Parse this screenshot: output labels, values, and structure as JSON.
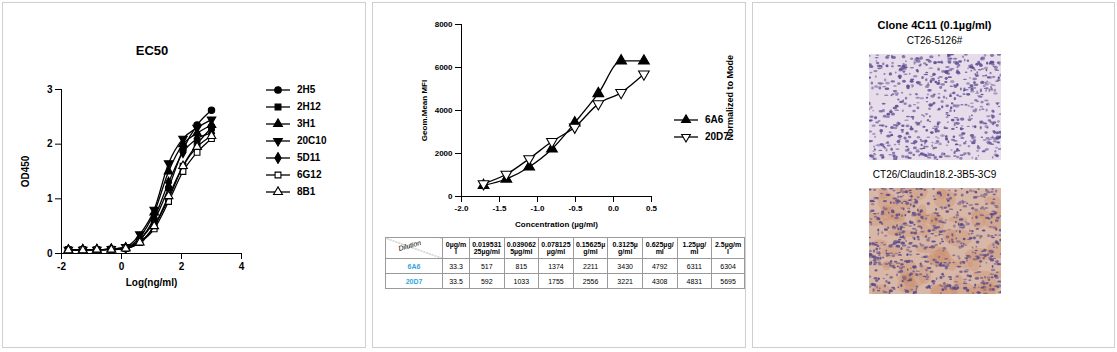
{
  "chart_data": [
    {
      "type": "line",
      "title": "EC50",
      "x_label": "Log(ng/ml)",
      "y_label": "OD450",
      "x": [
        -1.77,
        -1.29,
        -0.82,
        -0.34,
        0.14,
        0.61,
        1.09,
        1.57,
        2.05,
        2.52,
        3.0
      ],
      "xlim": [
        -2,
        4
      ],
      "xticks": [
        -2,
        0,
        2,
        4
      ],
      "ylim": [
        0,
        3
      ],
      "yticks": [
        0,
        1,
        2,
        3
      ],
      "legend": "right",
      "series": [
        {
          "name": "2H5",
          "color": "#000000",
          "marker": "circle",
          "values": [
            0.07,
            0.07,
            0.07,
            0.08,
            0.1,
            0.25,
            0.6,
            1.2,
            1.9,
            2.35,
            2.62
          ]
        },
        {
          "name": "2H12",
          "color": "#000000",
          "marker": "square",
          "values": [
            0.07,
            0.07,
            0.07,
            0.08,
            0.1,
            0.2,
            0.5,
            1.0,
            1.6,
            2.0,
            2.3
          ]
        },
        {
          "name": "3H1",
          "color": "#000000",
          "marker": "triangle",
          "values": [
            0.07,
            0.07,
            0.07,
            0.08,
            0.11,
            0.3,
            0.75,
            1.5,
            2.0,
            2.2,
            2.35
          ]
        },
        {
          "name": "20C10",
          "color": "#000000",
          "marker": "triangle-down",
          "values": [
            0.07,
            0.07,
            0.07,
            0.08,
            0.12,
            0.35,
            0.8,
            1.65,
            2.1,
            2.3,
            2.45
          ]
        },
        {
          "name": "5D11",
          "color": "#000000",
          "marker": "diamond",
          "values": [
            0.06,
            0.07,
            0.07,
            0.08,
            0.1,
            0.25,
            0.65,
            1.3,
            1.85,
            2.1,
            2.2
          ]
        },
        {
          "name": "6G12",
          "color": "#000000",
          "marker": "square-open",
          "values": [
            0.06,
            0.07,
            0.07,
            0.07,
            0.09,
            0.2,
            0.45,
            0.95,
            1.5,
            1.85,
            2.1
          ]
        },
        {
          "name": "8B1",
          "color": "#000000",
          "marker": "triangle-open",
          "values": [
            0.06,
            0.06,
            0.07,
            0.07,
            0.09,
            0.2,
            0.5,
            1.05,
            1.6,
            1.95,
            2.15
          ]
        }
      ]
    },
    {
      "type": "line",
      "x_label": "Concentration (µg/ml)",
      "y_label": "Geom.Mean MFI",
      "annotations": [
        "Normalized to Mode"
      ],
      "x": [
        -1.71,
        -1.41,
        -1.11,
        -0.81,
        -0.51,
        -0.2,
        0.1,
        0.4
      ],
      "xlim": [
        -2,
        0.5
      ],
      "xticks": [
        {
          "value": -2,
          "label": "-2.0"
        },
        -1.5,
        {
          "value": -1,
          "label": "-1.0"
        },
        -0.5,
        {
          "value": 0,
          "label": "0.0"
        },
        0.5
      ],
      "ylim": [
        0,
        8000
      ],
      "yticks": [
        0,
        2000,
        4000,
        6000,
        8000
      ],
      "legend": "right",
      "series": [
        {
          "name": "6A6",
          "color": "#000000",
          "marker": "triangle",
          "values": [
            517,
            815,
            1374,
            2211,
            3430,
            4792,
            6311,
            6304
          ]
        },
        {
          "name": "20D7",
          "color": "#000000",
          "marker": "triangle-down-open",
          "values": [
            592,
            1033,
            1755,
            2556,
            3221,
            4308,
            4831,
            5695
          ]
        }
      ]
    }
  ],
  "table": {
    "corner": "Dilution",
    "columns": [
      "0µg/ml",
      "0.01953125µg/ml",
      "0.0390625µg/ml",
      "0.078125µg/ml",
      "0.15625µg/ml",
      "0.3125µg/ml",
      "0.625µg/ml",
      "1.25µg/ml",
      "2.5µg/ml"
    ],
    "rows": [
      {
        "name": "6A6",
        "color": "#33a8d8",
        "values": [
          33.3,
          517,
          815,
          1374,
          2211,
          3430,
          4792,
          6311,
          6304
        ]
      },
      {
        "name": "20D7",
        "color": "#33a8d8",
        "values": [
          33.5,
          592,
          1033,
          1755,
          2556,
          3221,
          4308,
          4831,
          5695
        ]
      }
    ]
  },
  "image_panel": {
    "title": "Clone 4C11 (0.1µg/ml)",
    "images": [
      {
        "label": "CT26-5126#"
      },
      {
        "label": "CT26/Claudin18.2-3B5-3C9"
      }
    ]
  }
}
